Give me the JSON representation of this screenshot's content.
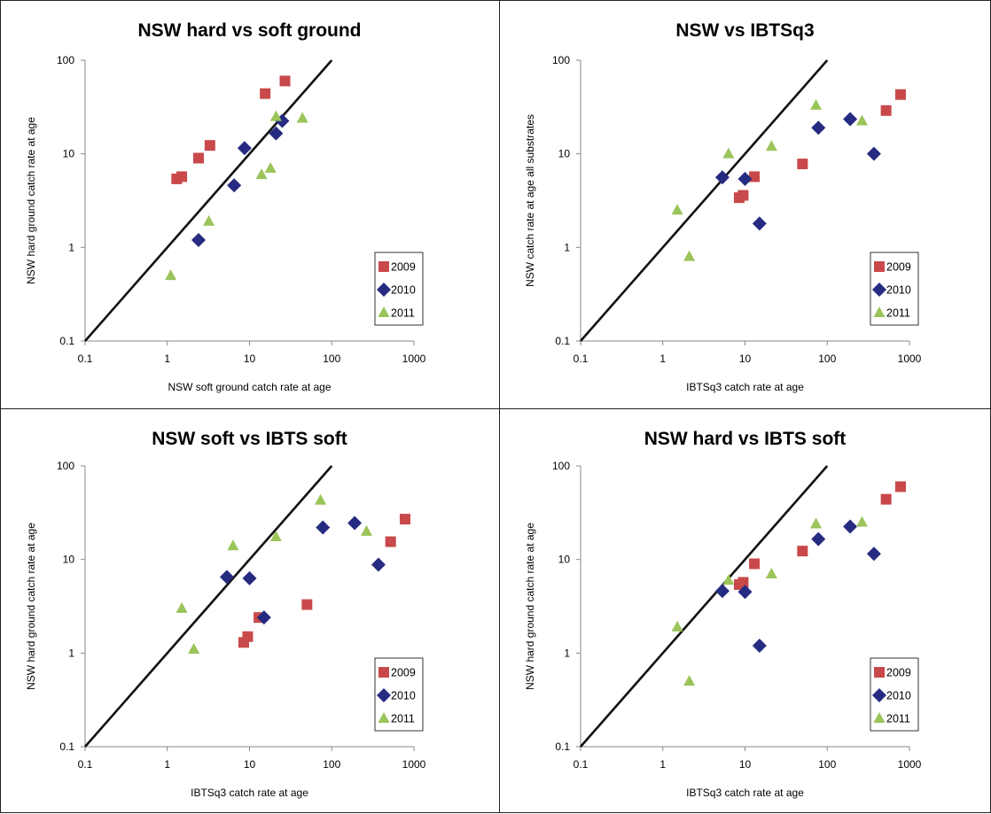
{
  "colors": {
    "2009": "#c9494a",
    "2010": "#262b82",
    "2011": "#9bc45a",
    "line": "#111111"
  },
  "chart_data": [
    {
      "type": "scatter",
      "title": "NSW hard vs soft ground",
      "xlabel": "NSW soft ground catch rate at age",
      "ylabel": "NSW hard ground catch rate at age",
      "xscale": "log",
      "yscale": "log",
      "xlim": [
        0.1,
        1000
      ],
      "ylim": [
        0.1,
        100
      ],
      "xticks": [
        "0.1",
        "1",
        "10",
        "100",
        "1000"
      ],
      "yticks": [
        "0.1",
        "1",
        "10",
        "100"
      ],
      "reference_line": "1:1",
      "legend_position": "bottom-right",
      "series": [
        {
          "name": "2009",
          "marker": "square",
          "x": [
            1.3,
            1.5,
            2.4,
            3.3,
            15.5,
            27.0
          ],
          "y": [
            5.4,
            5.7,
            9.0,
            12.3,
            44.0,
            60.0
          ]
        },
        {
          "name": "2010",
          "marker": "diamond",
          "x": [
            2.4,
            6.5,
            8.7,
            21.0,
            25.0
          ],
          "y": [
            1.2,
            4.6,
            11.5,
            16.5,
            22.5
          ]
        },
        {
          "name": "2011",
          "marker": "triangle",
          "x": [
            1.1,
            3.2,
            14.0,
            18.0,
            21.0,
            44.0
          ],
          "y": [
            0.5,
            1.9,
            6.0,
            7.0,
            25.0,
            24.0
          ]
        }
      ]
    },
    {
      "type": "scatter",
      "title": "NSW vs IBTSq3",
      "xlabel": "IBTSq3 catch rate at age",
      "ylabel": "NSW catch rate at age all substrates",
      "xscale": "log",
      "yscale": "log",
      "xlim": [
        0.1,
        1000
      ],
      "ylim": [
        0.1,
        100
      ],
      "xticks": [
        "0.1",
        "1",
        "10",
        "100",
        "1000"
      ],
      "yticks": [
        "0.1",
        "1",
        "10",
        "100"
      ],
      "reference_line": "1:1",
      "legend_position": "bottom-right",
      "series": [
        {
          "name": "2009",
          "marker": "square",
          "x": [
            8.5,
            9.5,
            13.0,
            50.0,
            520.0,
            780.0
          ],
          "y": [
            3.4,
            3.6,
            5.7,
            7.8,
            29.0,
            43.0
          ]
        },
        {
          "name": "2010",
          "marker": "diamond",
          "x": [
            5.3,
            10.0,
            15.0,
            78.0,
            190.0,
            370.0
          ],
          "y": [
            5.6,
            5.4,
            1.8,
            19.0,
            23.5,
            10.0
          ]
        },
        {
          "name": "2011",
          "marker": "triangle",
          "x": [
            1.5,
            2.1,
            6.3,
            21.0,
            73.0,
            265.0
          ],
          "y": [
            2.5,
            0.8,
            10.0,
            12.0,
            33.0,
            22.5
          ]
        }
      ]
    },
    {
      "type": "scatter",
      "title": "NSW soft vs IBTS soft",
      "xlabel": "IBTSq3 catch rate at age",
      "ylabel": "NSW hard ground catch rate at age",
      "xscale": "log",
      "yscale": "log",
      "xlim": [
        0.1,
        1000
      ],
      "ylim": [
        0.1,
        100
      ],
      "xticks": [
        "0.1",
        "1",
        "10",
        "100",
        "1000"
      ],
      "yticks": [
        "0.1",
        "1",
        "10",
        "100"
      ],
      "reference_line": "1:1",
      "legend_position": "bottom-right",
      "series": [
        {
          "name": "2009",
          "marker": "square",
          "x": [
            8.5,
            9.5,
            13.0,
            50.0,
            520.0,
            780.0
          ],
          "y": [
            1.3,
            1.5,
            2.4,
            3.3,
            15.5,
            27.0
          ]
        },
        {
          "name": "2010",
          "marker": "diamond",
          "x": [
            5.3,
            10.0,
            15.0,
            78.0,
            190.0,
            370.0
          ],
          "y": [
            6.5,
            6.3,
            2.4,
            22.0,
            24.5,
            8.8
          ]
        },
        {
          "name": "2011",
          "marker": "triangle",
          "x": [
            1.5,
            2.1,
            6.3,
            21.0,
            73.0,
            265.0
          ],
          "y": [
            3.0,
            1.1,
            14.0,
            17.5,
            43.0,
            20.0
          ]
        }
      ]
    },
    {
      "type": "scatter",
      "title": "NSW hard vs IBTS soft",
      "xlabel": "IBTSq3 catch rate at age",
      "ylabel": "NSW hard ground catch rate at age",
      "xscale": "log",
      "yscale": "log",
      "xlim": [
        0.1,
        1000
      ],
      "ylim": [
        0.1,
        100
      ],
      "xticks": [
        "0.1",
        "1",
        "10",
        "100",
        "1000"
      ],
      "yticks": [
        "0.1",
        "1",
        "10",
        "100"
      ],
      "reference_line": "1:1",
      "legend_position": "bottom-right",
      "series": [
        {
          "name": "2009",
          "marker": "square",
          "x": [
            8.5,
            9.5,
            13.0,
            50.0,
            520.0,
            780.0
          ],
          "y": [
            5.4,
            5.7,
            9.0,
            12.3,
            44.0,
            60.0
          ]
        },
        {
          "name": "2010",
          "marker": "diamond",
          "x": [
            5.3,
            10.0,
            15.0,
            78.0,
            190.0,
            370.0
          ],
          "y": [
            4.6,
            4.5,
            1.2,
            16.5,
            22.5,
            11.5
          ]
        },
        {
          "name": "2011",
          "marker": "triangle",
          "x": [
            1.5,
            2.1,
            6.3,
            21.0,
            73.0,
            265.0
          ],
          "y": [
            1.9,
            0.5,
            6.0,
            7.0,
            24.0,
            25.0
          ]
        }
      ]
    }
  ]
}
